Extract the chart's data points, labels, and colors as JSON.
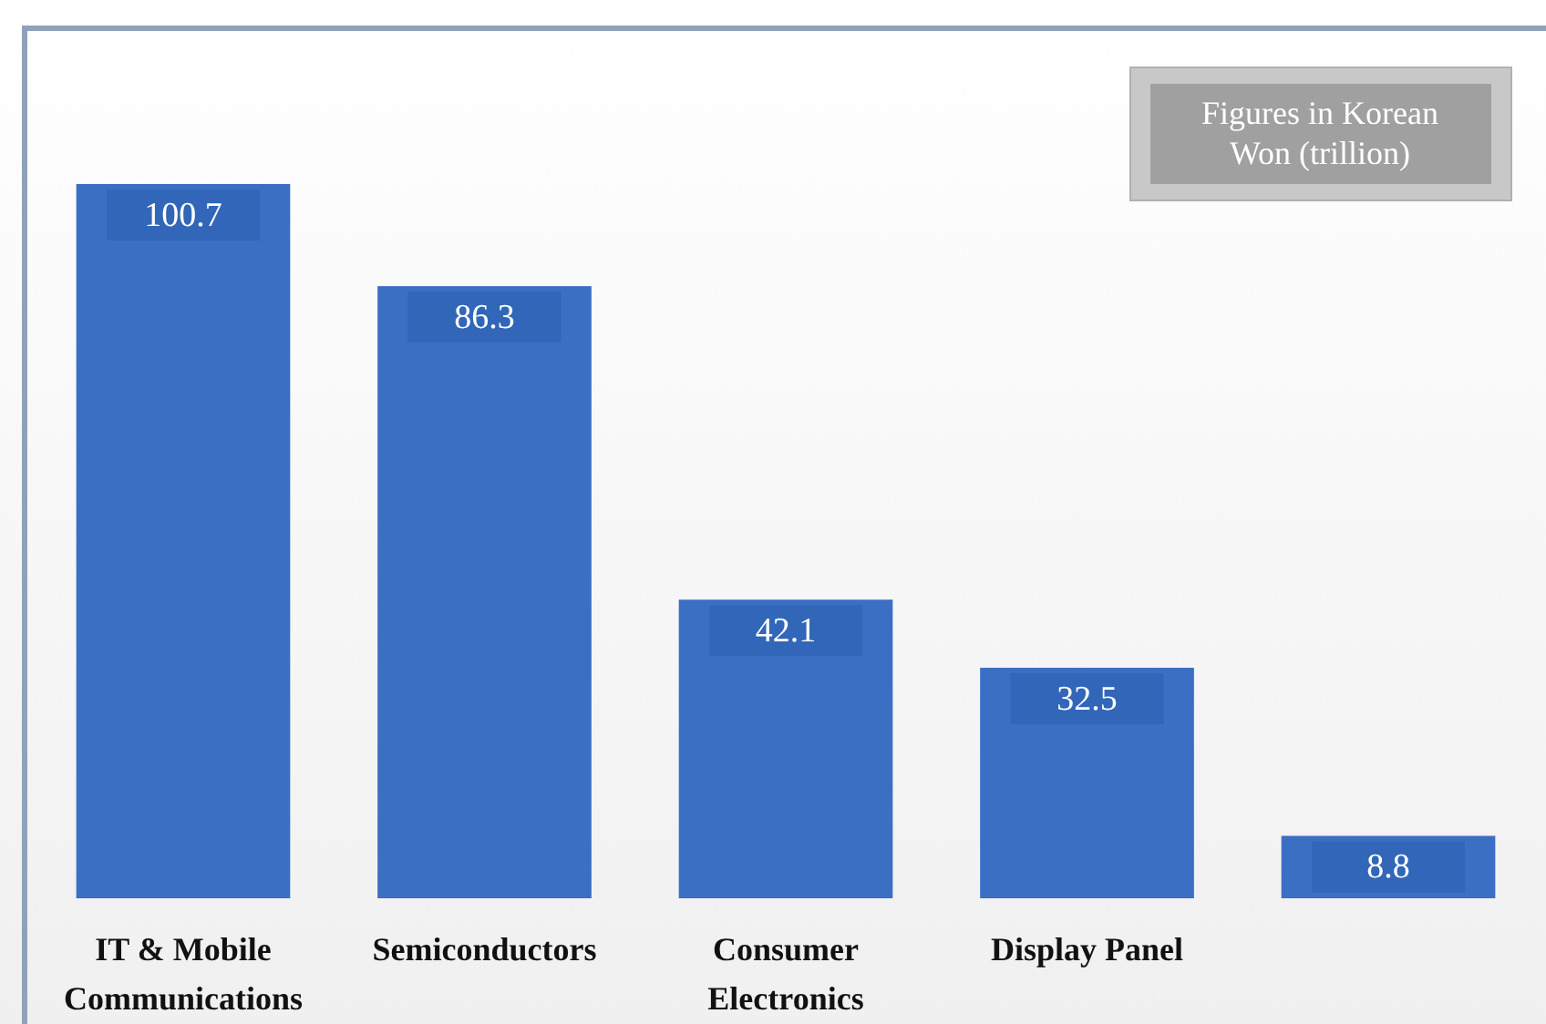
{
  "chart_data": {
    "type": "bar",
    "categories": [
      "IT & Mobile Communications",
      "Semiconductors",
      "Consumer Electronics",
      "Display Panel",
      null
    ],
    "values": [
      100.7,
      86.3,
      42.1,
      32.5,
      8.8
    ],
    "color": "#3a6fc4",
    "data_labels": true,
    "annotations": [
      "Figures in Korean Won (trillion)"
    ]
  }
}
